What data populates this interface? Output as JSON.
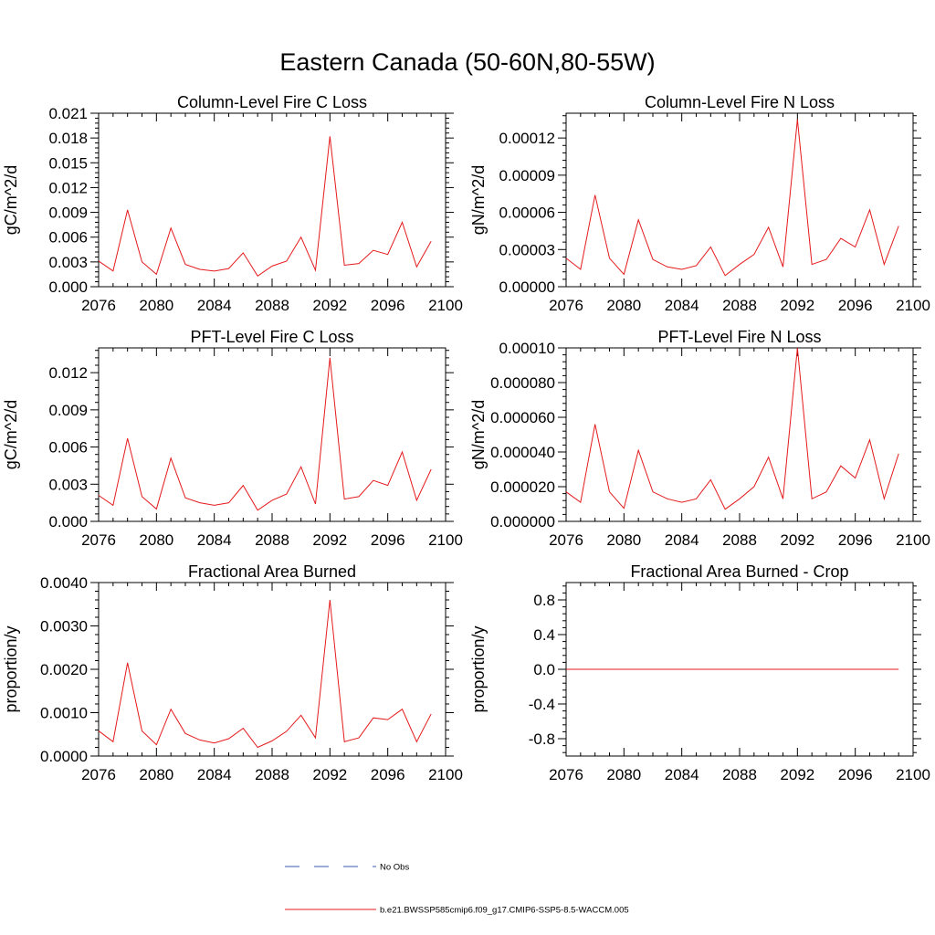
{
  "page_title": "Eastern Canada (50-60N,80-55W)",
  "colors": {
    "model_line": "#e41a1c",
    "obs_line": "#3b5bb0",
    "axes": "#000000"
  },
  "legend": [
    {
      "label": "No Obs",
      "style": "dashed",
      "color": "#3b5bb0"
    },
    {
      "label": "b.e21.BWSSP585cmip6.f09_g17.CMIP6-SSP5-8.5-WACCM.005",
      "style": "solid",
      "color": "#e41a1c"
    }
  ],
  "chart_data": [
    {
      "type": "line",
      "title": "Column-Level Fire C Loss",
      "ylabel": "gC/m^2/d",
      "xlim": [
        2076,
        2100
      ],
      "ylim": [
        0,
        0.021
      ],
      "xticks": [
        "2076",
        "2080",
        "2084",
        "2088",
        "2092",
        "2096",
        "2100"
      ],
      "yticks": [
        "0.000",
        "0.003",
        "0.006",
        "0.009",
        "0.012",
        "0.015",
        "0.018",
        "0.021"
      ],
      "x": [
        2076,
        2077,
        2078,
        2079,
        2080,
        2081,
        2082,
        2083,
        2084,
        2085,
        2086,
        2087,
        2088,
        2089,
        2090,
        2091,
        2092,
        2093,
        2094,
        2095,
        2096,
        2097,
        2098,
        2099
      ],
      "series": [
        {
          "values": [
            0.0031,
            0.0019,
            0.0093,
            0.003,
            0.0015,
            0.0071,
            0.0027,
            0.0021,
            0.0019,
            0.0022,
            0.0041,
            0.0013,
            0.0025,
            0.0031,
            0.006,
            0.002,
            0.0182,
            0.0026,
            0.0028,
            0.0044,
            0.0039,
            0.0078,
            0.0024,
            0.0055
          ]
        }
      ]
    },
    {
      "type": "line",
      "title": "Column-Level Fire N Loss",
      "ylabel": "gN/m^2/d",
      "xlim": [
        2076,
        2100
      ],
      "ylim": [
        0,
        0.00014
      ],
      "xticks": [
        "2076",
        "2080",
        "2084",
        "2088",
        "2092",
        "2096",
        "2100"
      ],
      "yticks": [
        "0.00000",
        "0.00003",
        "0.00006",
        "0.00009",
        "0.00012"
      ],
      "x": [
        2076,
        2077,
        2078,
        2079,
        2080,
        2081,
        2082,
        2083,
        2084,
        2085,
        2086,
        2087,
        2088,
        2089,
        2090,
        2091,
        2092,
        2093,
        2094,
        2095,
        2096,
        2097,
        2098,
        2099
      ],
      "series": [
        {
          "values": [
            2.3e-05,
            1.4e-05,
            7.4e-05,
            2.3e-05,
            1e-05,
            5.4e-05,
            2.2e-05,
            1.6e-05,
            1.4e-05,
            1.7e-05,
            3.2e-05,
            9e-06,
            1.8e-05,
            2.6e-05,
            4.8e-05,
            1.6e-05,
            0.000135,
            1.8e-05,
            2.2e-05,
            3.9e-05,
            3.2e-05,
            6.2e-05,
            1.8e-05,
            4.9e-05
          ]
        }
      ]
    },
    {
      "type": "line",
      "title": "PFT-Level Fire C Loss",
      "ylabel": "gC/m^2/d",
      "xlim": [
        2076,
        2100
      ],
      "ylim": [
        0,
        0.014
      ],
      "xticks": [
        "2076",
        "2080",
        "2084",
        "2088",
        "2092",
        "2096",
        "2100"
      ],
      "yticks": [
        "0.000",
        "0.003",
        "0.006",
        "0.009",
        "0.012"
      ],
      "x": [
        2076,
        2077,
        2078,
        2079,
        2080,
        2081,
        2082,
        2083,
        2084,
        2085,
        2086,
        2087,
        2088,
        2089,
        2090,
        2091,
        2092,
        2093,
        2094,
        2095,
        2096,
        2097,
        2098,
        2099
      ],
      "series": [
        {
          "values": [
            0.0021,
            0.0013,
            0.0067,
            0.002,
            0.001,
            0.0051,
            0.0019,
            0.0015,
            0.0013,
            0.0015,
            0.0029,
            0.0009,
            0.0017,
            0.0022,
            0.0044,
            0.0014,
            0.0132,
            0.0018,
            0.002,
            0.0033,
            0.0029,
            0.0056,
            0.0017,
            0.0042
          ]
        }
      ]
    },
    {
      "type": "line",
      "title": "PFT-Level Fire N Loss",
      "ylabel": "gN/m^2/d",
      "xlim": [
        2076,
        2100
      ],
      "ylim": [
        0,
        0.0001
      ],
      "xticks": [
        "2076",
        "2080",
        "2084",
        "2088",
        "2092",
        "2096",
        "2100"
      ],
      "yticks": [
        "0.000000",
        "0.000020",
        "0.000040",
        "0.000060",
        "0.000080",
        "0.00010"
      ],
      "x": [
        2076,
        2077,
        2078,
        2079,
        2080,
        2081,
        2082,
        2083,
        2084,
        2085,
        2086,
        2087,
        2088,
        2089,
        2090,
        2091,
        2092,
        2093,
        2094,
        2095,
        2096,
        2097,
        2098,
        2099
      ],
      "series": [
        {
          "values": [
            1.7e-05,
            1.1e-05,
            5.6e-05,
            1.7e-05,
            7.5e-06,
            4.1e-05,
            1.7e-05,
            1.3e-05,
            1.1e-05,
            1.3e-05,
            2.4e-05,
            7e-06,
            1.3e-05,
            2e-05,
            3.7e-05,
            1.3e-05,
            0.0001,
            1.3e-05,
            1.7e-05,
            3.2e-05,
            2.5e-05,
            4.7e-05,
            1.3e-05,
            3.9e-05
          ]
        }
      ]
    },
    {
      "type": "line",
      "title": "Fractional Area Burned",
      "ylabel": "proportion/y",
      "xlim": [
        2076,
        2100
      ],
      "ylim": [
        0,
        0.004
      ],
      "xticks": [
        "2076",
        "2080",
        "2084",
        "2088",
        "2092",
        "2096",
        "2100"
      ],
      "yticks": [
        "0.0000",
        "0.0010",
        "0.0020",
        "0.0030",
        "0.0040"
      ],
      "x": [
        2076,
        2077,
        2078,
        2079,
        2080,
        2081,
        2082,
        2083,
        2084,
        2085,
        2086,
        2087,
        2088,
        2089,
        2090,
        2091,
        2092,
        2093,
        2094,
        2095,
        2096,
        2097,
        2098,
        2099
      ],
      "series": [
        {
          "values": [
            0.00058,
            0.00033,
            0.00215,
            0.00058,
            0.00026,
            0.00108,
            0.00052,
            0.00037,
            0.0003,
            0.0004,
            0.00064,
            0.0002,
            0.00035,
            0.00057,
            0.00094,
            0.00042,
            0.0036,
            0.00033,
            0.00042,
            0.00088,
            0.00084,
            0.00108,
            0.00033,
            0.00097
          ]
        }
      ]
    },
    {
      "type": "line",
      "title": "Fractional Area Burned - Crop",
      "ylabel": "proportion/y",
      "xlim": [
        2076,
        2100
      ],
      "ylim": [
        -1,
        1
      ],
      "xticks": [
        "2076",
        "2080",
        "2084",
        "2088",
        "2092",
        "2096",
        "2100"
      ],
      "yticks": [
        "-0.8",
        "-0.4",
        "0.0",
        "0.4",
        "0.8"
      ],
      "x": [
        2076,
        2077,
        2078,
        2079,
        2080,
        2081,
        2082,
        2083,
        2084,
        2085,
        2086,
        2087,
        2088,
        2089,
        2090,
        2091,
        2092,
        2093,
        2094,
        2095,
        2096,
        2097,
        2098,
        2099
      ],
      "series": [
        {
          "values": [
            0,
            0,
            0,
            0,
            0,
            0,
            0,
            0,
            0,
            0,
            0,
            0,
            0,
            0,
            0,
            0,
            0,
            0,
            0,
            0,
            0,
            0,
            0,
            0
          ]
        }
      ]
    }
  ]
}
